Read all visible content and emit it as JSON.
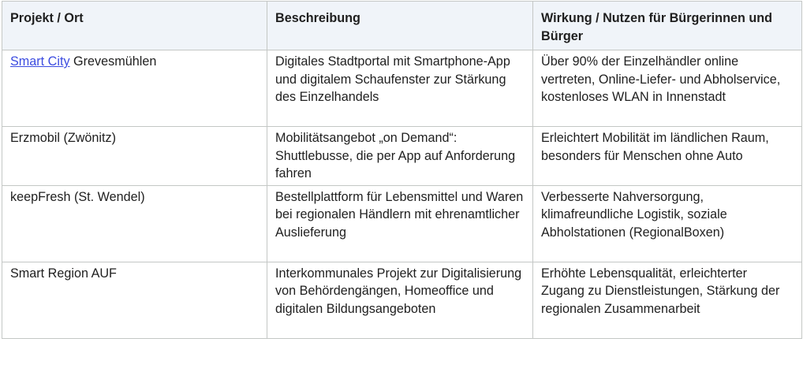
{
  "table": {
    "headers": [
      "Projekt / Ort",
      "Beschreibung",
      "Wirkung / Nutzen für Bürgerinnen und Bürger"
    ],
    "rows": [
      {
        "project_link": "Smart City",
        "project_rest": " Grevesmühlen",
        "description": "Digitales Stadtportal mit Smartphone-App und digitalem Schaufenster zur Stärkung des Einzelhandels",
        "impact": "Über 90% der Einzelhändler online vertreten, Online-Liefer- und Abholservice, kostenloses WLAN in Innenstadt"
      },
      {
        "project": "Erzmobil (Zwönitz)",
        "description": "Mobilitätsangebot „on Demand“: Shuttlebusse, die per App auf Anforderung fahren",
        "impact": "Erleichtert Mobilität im ländlichen Raum, besonders für Menschen ohne Auto"
      },
      {
        "project": "keepFresh (St. Wendel)",
        "description": "Bestellplattform für Lebensmittel und Waren bei regionalen Händlern mit ehrenamtlicher Auslieferung",
        "impact": "Verbesserte Nahversorgung, klimafreundliche Logistik, soziale Abholstationen (RegionalBoxen)"
      },
      {
        "project": "Smart Region AUF",
        "description": "Interkommunales Projekt zur Digitalisierung von Behördengängen, Homeoffice und digitalen Bildungsangeboten",
        "impact": "Erhöhte Lebensqualität, erleichterter Zugang zu Dienstleistungen, Stärkung der regionalen Zusammenarbeit"
      }
    ]
  },
  "colors": {
    "header_bg": "#f0f4f9",
    "border": "#c4c7c5",
    "link": "#3c4ce0",
    "text": "#1f1f1f"
  }
}
